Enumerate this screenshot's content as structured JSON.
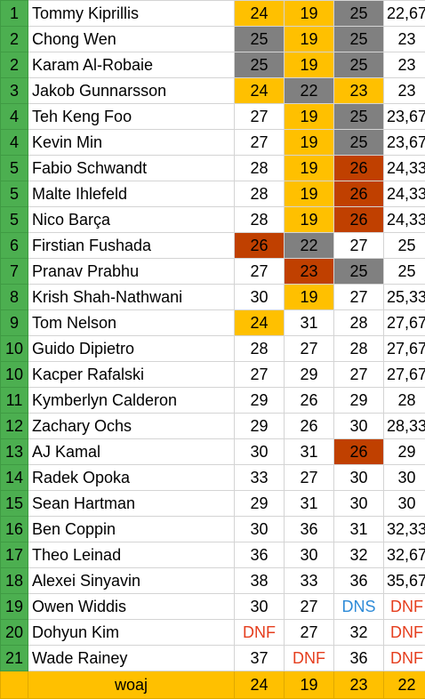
{
  "colors": {
    "rank_green": "#4caf50",
    "gold": "#ffc000",
    "gray": "#808080",
    "rust": "#c04000",
    "dnf_red": "#e53e1e",
    "dns_blue": "#2e8bd8"
  },
  "rows": [
    {
      "rank": "1",
      "name": "Tommy Kiprillis",
      "r1": "24",
      "r1s": "gold",
      "r2": "19",
      "r2s": "gold",
      "r3": "25",
      "r3s": "gray",
      "avg": "22,67"
    },
    {
      "rank": "2",
      "name": "Chong Wen",
      "r1": "25",
      "r1s": "gray",
      "r2": "19",
      "r2s": "gold",
      "r3": "25",
      "r3s": "gray",
      "avg": "23"
    },
    {
      "rank": "2",
      "name": "Karam Al-Robaie",
      "r1": "25",
      "r1s": "gray",
      "r2": "19",
      "r2s": "gold",
      "r3": "25",
      "r3s": "gray",
      "avg": "23"
    },
    {
      "rank": "3",
      "name": "Jakob Gunnarsson",
      "r1": "24",
      "r1s": "gold",
      "r2": "22",
      "r2s": "gray",
      "r3": "23",
      "r3s": "gold",
      "avg": "23"
    },
    {
      "rank": "4",
      "name": "Teh Keng Foo",
      "r1": "27",
      "r1s": "",
      "r2": "19",
      "r2s": "gold",
      "r3": "25",
      "r3s": "gray",
      "avg": "23,67"
    },
    {
      "rank": "4",
      "name": "Kevin Min",
      "r1": "27",
      "r1s": "",
      "r2": "19",
      "r2s": "gold",
      "r3": "25",
      "r3s": "gray",
      "avg": "23,67"
    },
    {
      "rank": "5",
      "name": "Fabio Schwandt",
      "r1": "28",
      "r1s": "",
      "r2": "19",
      "r2s": "gold",
      "r3": "26",
      "r3s": "rust",
      "avg": "24,33"
    },
    {
      "rank": "5",
      "name": "Malte Ihlefeld",
      "r1": "28",
      "r1s": "",
      "r2": "19",
      "r2s": "gold",
      "r3": "26",
      "r3s": "rust",
      "avg": "24,33"
    },
    {
      "rank": "5",
      "name": "Nico Barça",
      "r1": "28",
      "r1s": "",
      "r2": "19",
      "r2s": "gold",
      "r3": "26",
      "r3s": "rust",
      "avg": "24,33"
    },
    {
      "rank": "6",
      "name": "Firstian Fushada",
      "r1": "26",
      "r1s": "rust",
      "r2": "22",
      "r2s": "gray",
      "r3": "27",
      "r3s": "",
      "avg": "25"
    },
    {
      "rank": "7",
      "name": "Pranav Prabhu",
      "r1": "27",
      "r1s": "",
      "r2": "23",
      "r2s": "rust",
      "r3": "25",
      "r3s": "gray",
      "avg": "25"
    },
    {
      "rank": "8",
      "name": "Krish Shah-Nathwani",
      "r1": "30",
      "r1s": "",
      "r2": "19",
      "r2s": "gold",
      "r3": "27",
      "r3s": "",
      "avg": "25,33"
    },
    {
      "rank": "9",
      "name": "Tom Nelson",
      "r1": "24",
      "r1s": "gold",
      "r2": "31",
      "r2s": "",
      "r3": "28",
      "r3s": "",
      "avg": "27,67"
    },
    {
      "rank": "10",
      "name": "Guido Dipietro",
      "r1": "28",
      "r1s": "",
      "r2": "27",
      "r2s": "",
      "r3": "28",
      "r3s": "",
      "avg": "27,67"
    },
    {
      "rank": "10",
      "name": "Kacper Rafalski",
      "r1": "27",
      "r1s": "",
      "r2": "29",
      "r2s": "",
      "r3": "27",
      "r3s": "",
      "avg": "27,67"
    },
    {
      "rank": "11",
      "name": "Kymberlyn Calderon",
      "r1": "29",
      "r1s": "",
      "r2": "26",
      "r2s": "",
      "r3": "29",
      "r3s": "",
      "avg": "28"
    },
    {
      "rank": "12",
      "name": "Zachary Ochs",
      "r1": "29",
      "r1s": "",
      "r2": "26",
      "r2s": "",
      "r3": "30",
      "r3s": "",
      "avg": "28,33"
    },
    {
      "rank": "13",
      "name": "AJ Kamal",
      "r1": "30",
      "r1s": "",
      "r2": "31",
      "r2s": "",
      "r3": "26",
      "r3s": "rust",
      "avg": "29"
    },
    {
      "rank": "14",
      "name": "Radek Opoka",
      "r1": "33",
      "r1s": "",
      "r2": "27",
      "r2s": "",
      "r3": "30",
      "r3s": "",
      "avg": "30"
    },
    {
      "rank": "15",
      "name": "Sean Hartman",
      "r1": "29",
      "r1s": "",
      "r2": "31",
      "r2s": "",
      "r3": "30",
      "r3s": "",
      "avg": "30"
    },
    {
      "rank": "16",
      "name": "Ben Coppin",
      "r1": "30",
      "r1s": "",
      "r2": "36",
      "r2s": "",
      "r3": "31",
      "r3s": "",
      "avg": "32,33"
    },
    {
      "rank": "17",
      "name": "Theo Leinad",
      "r1": "36",
      "r1s": "",
      "r2": "30",
      "r2s": "",
      "r3": "32",
      "r3s": "",
      "avg": "32,67"
    },
    {
      "rank": "18",
      "name": "Alexei Sinyavin",
      "r1": "38",
      "r1s": "",
      "r2": "33",
      "r2s": "",
      "r3": "36",
      "r3s": "",
      "avg": "35,67"
    },
    {
      "rank": "19",
      "name": "Owen Widdis",
      "r1": "30",
      "r1s": "",
      "r2": "27",
      "r2s": "",
      "r3": "DNS",
      "r3s": "blue",
      "avg": "DNF",
      "avgs": "red"
    },
    {
      "rank": "20",
      "name": "Dohyun Kim",
      "r1": "DNF",
      "r1s": "red",
      "r2": "27",
      "r2s": "",
      "r3": "32",
      "r3s": "",
      "avg": "DNF",
      "avgs": "red"
    },
    {
      "rank": "21",
      "name": "Wade Rainey",
      "r1": "37",
      "r1s": "",
      "r2": "DNF",
      "r2s": "red",
      "r3": "36",
      "r3s": "",
      "avg": "DNF",
      "avgs": "red"
    }
  ],
  "footer": {
    "label": "woaj",
    "r1": "24",
    "r2": "19",
    "r3": "23",
    "avg": "22"
  }
}
